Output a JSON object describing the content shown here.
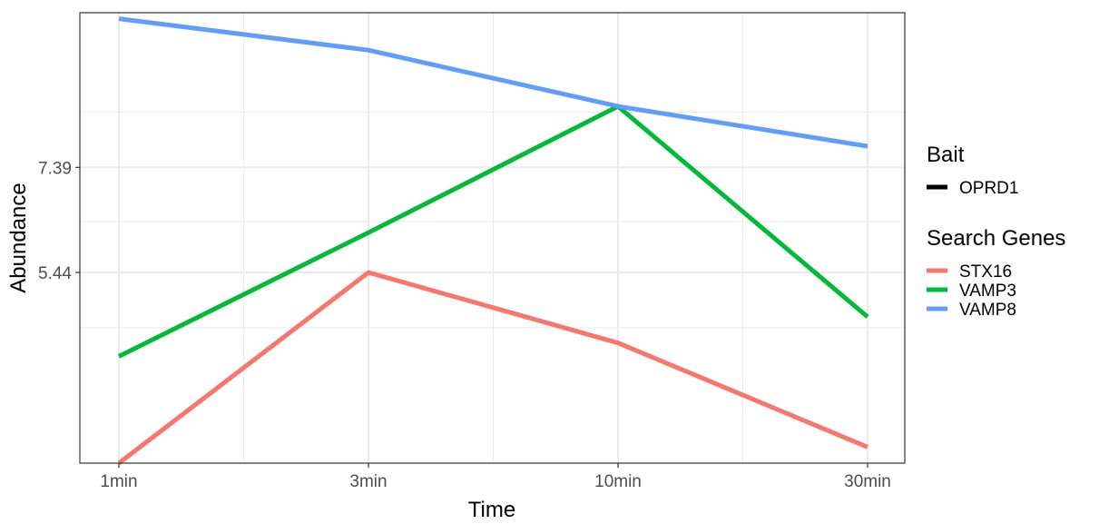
{
  "chart_data": {
    "type": "line",
    "xlabel": "Time",
    "ylabel": "Abundance",
    "categories": [
      "1min",
      "3min",
      "10min",
      "30min"
    ],
    "y_ticks": [
      {
        "value": 7.39,
        "label": "7.39"
      },
      {
        "value": 5.44,
        "label": "5.44"
      }
    ],
    "y_scale": "log",
    "y_minor_gridlines": [
      4.63,
      6.31,
      8.68
    ],
    "ylim": [
      3.12,
      11.6
    ],
    "grid": true,
    "legend_position": "right",
    "legends": [
      {
        "title": "Bait",
        "entries": [
          {
            "label": "OPRD1",
            "color": "#000000"
          }
        ]
      },
      {
        "title": "Search Genes",
        "entries": [
          {
            "label": "STX16",
            "color": "#F8766D"
          },
          {
            "label": "VAMP3",
            "color": "#00BA38"
          },
          {
            "label": "VAMP8",
            "color": "#619CFF"
          }
        ]
      }
    ],
    "series": [
      {
        "name": "STX16",
        "color": "#F8766D",
        "values": [
          3.12,
          5.44,
          4.43,
          3.27
        ]
      },
      {
        "name": "VAMP3",
        "color": "#00BA38",
        "values": [
          4.26,
          6.11,
          8.83,
          4.78
        ]
      },
      {
        "name": "VAMP8",
        "color": "#619CFF",
        "values": [
          11.4,
          10.4,
          8.83,
          7.86
        ]
      }
    ]
  }
}
